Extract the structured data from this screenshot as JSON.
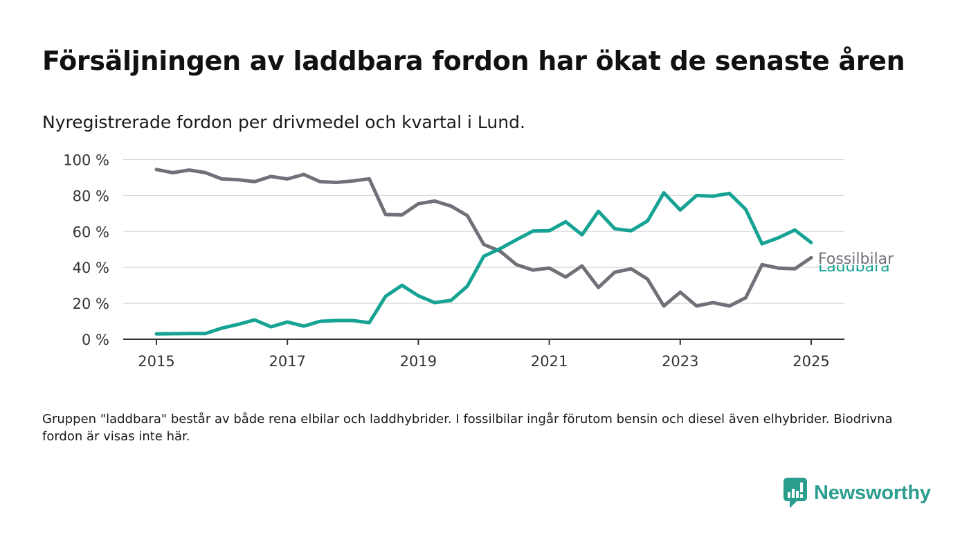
{
  "title": "Försäljningen av laddbara fordon har ökat de senaste åren",
  "subtitle": "Nyregistrerade fordon per drivmedel och kvartal i Lund.",
  "note": "Gruppen \"laddbara\" består av både rena elbilar och laddhybrider. I fossilbilar ingår förutom bensin och diesel även elhybrider. Biodrivna fordon är visas inte här.",
  "brand": {
    "name": "Newsworthy",
    "icon": "newsworthy-logo-icon",
    "color": "#2b9d8f"
  },
  "chart_data": {
    "type": "line",
    "xlabel": "",
    "ylabel": "",
    "ylim": [
      0,
      100
    ],
    "yticks": [
      0,
      20,
      40,
      60,
      80,
      100
    ],
    "ytick_labels": [
      "0 %",
      "20 %",
      "40 %",
      "60 %",
      "80 %",
      "100 %"
    ],
    "xlim": [
      "2015Q1",
      "2025Q1"
    ],
    "xtick_labels": [
      "2015",
      "2017",
      "2019",
      "2021",
      "2023",
      "2025"
    ],
    "grid": true,
    "legend": "inline labels at line ends",
    "x": [
      "2015Q1",
      "2015Q2",
      "2015Q3",
      "2015Q4",
      "2016Q1",
      "2016Q2",
      "2016Q3",
      "2016Q4",
      "2017Q1",
      "2017Q2",
      "2017Q3",
      "2017Q4",
      "2018Q1",
      "2018Q2",
      "2018Q3",
      "2018Q4",
      "2019Q1",
      "2019Q2",
      "2019Q3",
      "2019Q4",
      "2020Q1",
      "2020Q2",
      "2020Q3",
      "2020Q4",
      "2021Q1",
      "2021Q2",
      "2021Q3",
      "2021Q4",
      "2022Q1",
      "2022Q2",
      "2022Q3",
      "2022Q4",
      "2023Q1",
      "2023Q2",
      "2023Q3",
      "2023Q4",
      "2024Q1",
      "2024Q2",
      "2024Q3",
      "2024Q4",
      "2025Q1"
    ],
    "series": [
      {
        "name": "Fossilbilar",
        "color": "#707078",
        "values": [
          94.5,
          92.7,
          94.2,
          92.7,
          89.2,
          88.8,
          87.7,
          90.6,
          89.2,
          91.7,
          87.7,
          87.3,
          88.1,
          89.3,
          69.4,
          69.2,
          75.4,
          76.9,
          74.1,
          68.8,
          52.7,
          49.0,
          41.5,
          38.5,
          39.6,
          34.6,
          40.8,
          28.8,
          37.3,
          39.2,
          33.5,
          18.5,
          26.2,
          18.5,
          20.4,
          18.5,
          23.1,
          41.5,
          39.6,
          39.2,
          45.4
        ]
      },
      {
        "name": "Laddbara",
        "color": "#16a394",
        "values": [
          3.0,
          3.1,
          3.2,
          3.2,
          6.2,
          8.3,
          10.8,
          6.9,
          9.6,
          7.3,
          10.0,
          10.4,
          10.4,
          9.2,
          23.9,
          30.0,
          24.2,
          20.4,
          21.6,
          29.6,
          46.2,
          50.4,
          55.4,
          60.2,
          60.4,
          65.4,
          58.1,
          71.2,
          61.5,
          60.4,
          65.8,
          81.5,
          71.9,
          80.0,
          79.6,
          81.2,
          72.3,
          53.1,
          56.5,
          60.8,
          53.8
        ]
      }
    ]
  }
}
